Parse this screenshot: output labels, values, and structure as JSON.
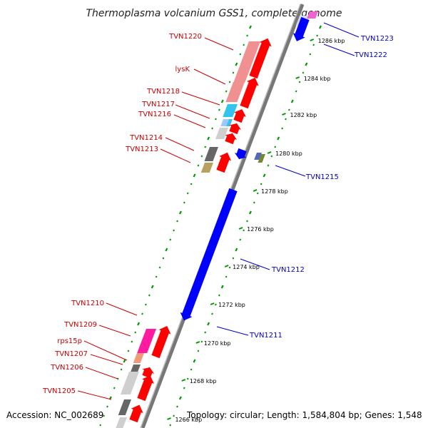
{
  "title": "Thermoplasma volcanium GSS1, complete genome",
  "footer": {
    "accession": "Accession: NC_002689",
    "topology": "Topology: circular; Length: 1,584,804 bp; Genes: 1,548"
  },
  "colors": {
    "forward": "#ff0000",
    "reverse": "#0000ff",
    "forward_label": "#cc0000",
    "reverse_label": "#0000cc",
    "ruler_dots": "#009900",
    "backbone": "#888888"
  },
  "scale_marks": [
    "1286 kbp",
    "1284 kbp",
    "1282 kbp",
    "1280 kbp",
    "1278 kbp",
    "1276 kbp",
    "1274 kbp",
    "1272 kbp",
    "1270 kbp",
    "1268 kbp",
    "1266 kbp"
  ],
  "forward_labels": [
    "TVN1220",
    "lysK",
    "TVN1218",
    "TVN1217",
    "TVN1216",
    "TVN1214",
    "TVN1213",
    "TVN1210",
    "TVN1209",
    "rps15p",
    "TVN1207",
    "TVN1206",
    "TVN1205"
  ],
  "reverse_labels": [
    "TVN1223",
    "TVN1222",
    "TVN1215",
    "TVN1212",
    "TVN1211"
  ]
}
